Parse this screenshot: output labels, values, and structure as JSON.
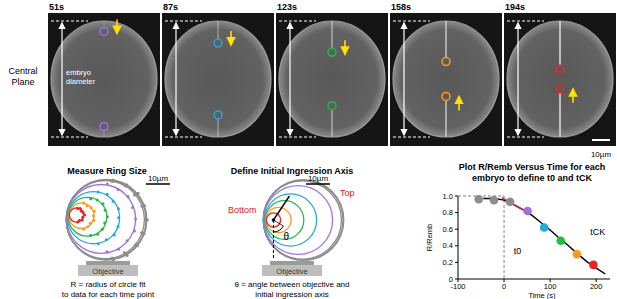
{
  "images": {
    "row_label": "Central Plane",
    "diameter_label": "embryo diameter",
    "scale_bar": "10µm",
    "times": [
      "51s",
      "87s",
      "123s",
      "158s",
      "194s"
    ]
  },
  "panels": [
    {
      "title": "Measure Ring Size",
      "scale_bar": "10µm",
      "objective": "Objective",
      "caption": [
        "R = radius of circle fit",
        "to data for each time point"
      ]
    },
    {
      "title": "Define Initial Ingression Axis",
      "scale_bar": "10µm",
      "objective": "Objective",
      "top": "Top",
      "bottom": "Bottom",
      "angle": "θ",
      "caption": [
        "θ = angle between objective and",
        "initial ingression axis"
      ]
    }
  ],
  "chart_data": {
    "type": "line",
    "title": [
      "Plot R/Remb Versus Time for each",
      "embryo to define t0 and tCK"
    ],
    "x_label": "Time (s)",
    "y_label": "R/Remb",
    "xlim": [
      -100,
      230
    ],
    "ylim": [
      0,
      1
    ],
    "xticks": [
      -100,
      0,
      100,
      200
    ],
    "yticks": [
      0,
      0.2,
      0.4,
      0.6,
      0.8,
      {
        "value": 1,
        "label": "1.0"
      }
    ],
    "series": [
      {
        "type": "line",
        "color": "#808080",
        "line_style": "dashed",
        "x": [
          -100,
          0,
          0
        ],
        "values": [
          1,
          1,
          0
        ]
      },
      {
        "type": "line",
        "color": "#000000",
        "x": [
          -45,
          -20,
          0,
          20,
          40,
          60,
          80,
          100,
          120,
          140,
          160,
          180,
          200,
          220
        ],
        "values": [
          0.97,
          0.97,
          0.95,
          0.9,
          0.84,
          0.77,
          0.68,
          0.59,
          0.49,
          0.4,
          0.3,
          0.21,
          0.13,
          0.06
        ]
      },
      {
        "type": "line",
        "color": "#e02020",
        "x": [
          -5,
          45
        ],
        "values": [
          0.98,
          0.82
        ]
      },
      {
        "type": "scatter",
        "marker": "circle",
        "x": [
          -55,
          -22,
          13,
          51,
          87,
          123,
          158,
          194
        ],
        "values": [
          0.96,
          0.95,
          0.93,
          0.82,
          0.62,
          0.46,
          0.3,
          0.17
        ],
        "colors": [
          "#8c8c8c",
          "#8c8c8c",
          "#8c8c8c",
          "#a070e0",
          "#22a8dd",
          "#22bb44",
          "#ff9922",
          "#ee2222"
        ]
      }
    ],
    "annotations": [
      {
        "text": "t0",
        "x": 21,
        "y": 0.3
      },
      {
        "text": "tCK",
        "x": 187,
        "y": 0.53
      }
    ]
  }
}
